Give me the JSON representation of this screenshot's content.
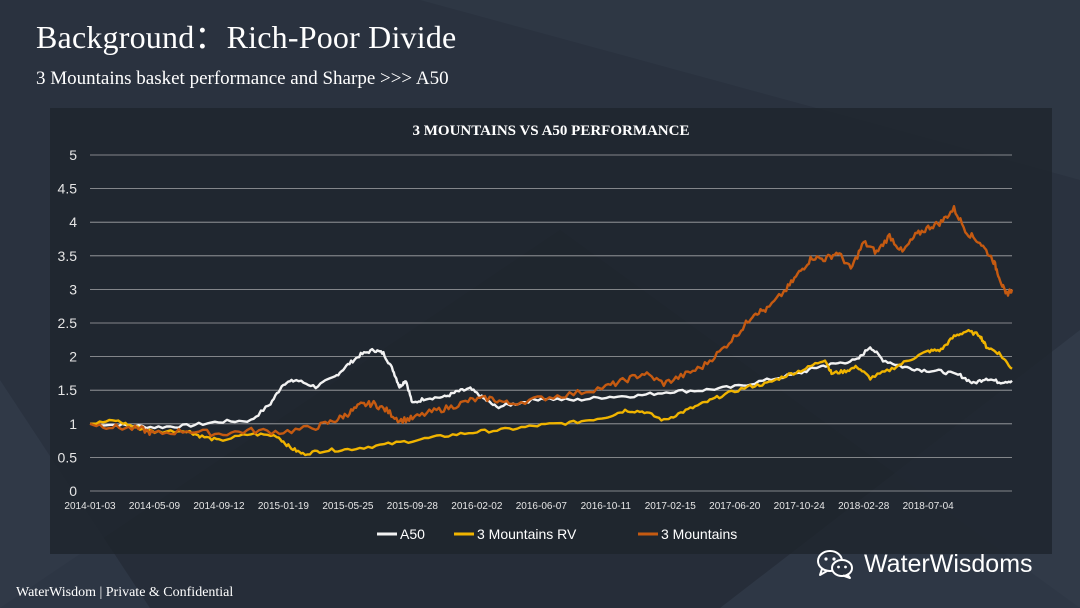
{
  "slide": {
    "title": "Background：Rich-Poor Divide",
    "subtitle": "3 Mountains basket performance and Sharpe >>> A50",
    "footer": "WaterWisdom | Private & Confidential",
    "brand": "WaterWisdoms"
  },
  "colors": {
    "background": "#2a323f",
    "panel": "#1e242c",
    "a50": "#f2f2f2",
    "rv": "#f0b400",
    "mountains": "#c55a11"
  },
  "chart_data": {
    "type": "line",
    "title": "3 MOUNTAINS VS A50 PERFORMANCE",
    "xlabel": "",
    "ylabel": "",
    "ylim": [
      0,
      5
    ],
    "yticks": [
      "0",
      "0.5",
      "1",
      "1.5",
      "2",
      "2.5",
      "3",
      "3.5",
      "4",
      "4.5",
      "5"
    ],
    "categories": [
      "2014-01-03",
      "2014-05-09",
      "2014-09-12",
      "2015-01-19",
      "2015-05-25",
      "2015-09-28",
      "2016-02-02",
      "2016-06-07",
      "2016-10-11",
      "2017-02-15",
      "2017-06-20",
      "2017-10-24",
      "2018-02-28",
      "2018-07-04"
    ],
    "x_end_index": 14.3,
    "legend_position": "bottom",
    "series": [
      {
        "name": "A50",
        "color": "#f2f2f2",
        "points": [
          [
            0,
            1.0
          ],
          [
            0.5,
            0.98
          ],
          [
            1,
            0.95
          ],
          [
            1.5,
            0.97
          ],
          [
            2,
            1.03
          ],
          [
            2.5,
            1.05
          ],
          [
            2.8,
            1.3
          ],
          [
            3,
            1.6
          ],
          [
            3.2,
            1.65
          ],
          [
            3.5,
            1.55
          ],
          [
            3.8,
            1.7
          ],
          [
            4.0,
            1.88
          ],
          [
            4.2,
            2.03
          ],
          [
            4.4,
            2.1
          ],
          [
            4.55,
            2.05
          ],
          [
            4.7,
            1.8
          ],
          [
            4.8,
            1.55
          ],
          [
            4.9,
            1.65
          ],
          [
            5.0,
            1.3
          ],
          [
            5.2,
            1.38
          ],
          [
            5.5,
            1.4
          ],
          [
            5.7,
            1.48
          ],
          [
            5.9,
            1.52
          ],
          [
            6.1,
            1.38
          ],
          [
            6.3,
            1.25
          ],
          [
            6.6,
            1.3
          ],
          [
            7.0,
            1.38
          ],
          [
            7.5,
            1.35
          ],
          [
            8.0,
            1.4
          ],
          [
            8.5,
            1.42
          ],
          [
            9.0,
            1.48
          ],
          [
            9.5,
            1.5
          ],
          [
            10.0,
            1.55
          ],
          [
            10.5,
            1.65
          ],
          [
            11.0,
            1.75
          ],
          [
            11.3,
            1.85
          ],
          [
            11.6,
            1.9
          ],
          [
            11.9,
            1.95
          ],
          [
            12.1,
            2.15
          ],
          [
            12.3,
            1.95
          ],
          [
            12.6,
            1.85
          ],
          [
            12.9,
            1.8
          ],
          [
            13.2,
            1.78
          ],
          [
            13.5,
            1.72
          ],
          [
            13.7,
            1.6
          ],
          [
            13.9,
            1.68
          ],
          [
            14.1,
            1.62
          ],
          [
            14.3,
            1.64
          ]
        ]
      },
      {
        "name": "3 Mountains RV",
        "color": "#f0b400",
        "points": [
          [
            0,
            1.0
          ],
          [
            0.4,
            1.05
          ],
          [
            0.7,
            0.95
          ],
          [
            1,
            0.88
          ],
          [
            1.5,
            0.9
          ],
          [
            1.7,
            0.82
          ],
          [
            2,
            0.75
          ],
          [
            2.5,
            0.85
          ],
          [
            2.9,
            0.82
          ],
          [
            3.1,
            0.65
          ],
          [
            3.3,
            0.55
          ],
          [
            3.6,
            0.6
          ],
          [
            4.0,
            0.62
          ],
          [
            4.5,
            0.68
          ],
          [
            5.0,
            0.75
          ],
          [
            5.5,
            0.82
          ],
          [
            6.0,
            0.88
          ],
          [
            6.5,
            0.92
          ],
          [
            7.0,
            0.98
          ],
          [
            7.5,
            1.02
          ],
          [
            8.0,
            1.1
          ],
          [
            8.3,
            1.2
          ],
          [
            8.6,
            1.18
          ],
          [
            8.9,
            1.05
          ],
          [
            9.2,
            1.18
          ],
          [
            9.5,
            1.3
          ],
          [
            9.8,
            1.42
          ],
          [
            10.2,
            1.55
          ],
          [
            10.5,
            1.6
          ],
          [
            10.8,
            1.72
          ],
          [
            11.1,
            1.82
          ],
          [
            11.4,
            1.96
          ],
          [
            11.5,
            1.75
          ],
          [
            11.7,
            1.78
          ],
          [
            11.9,
            1.85
          ],
          [
            12.1,
            1.68
          ],
          [
            12.4,
            1.8
          ],
          [
            12.7,
            1.95
          ],
          [
            13.0,
            2.08
          ],
          [
            13.2,
            2.1
          ],
          [
            13.4,
            2.3
          ],
          [
            13.6,
            2.38
          ],
          [
            13.8,
            2.32
          ],
          [
            13.9,
            2.15
          ],
          [
            14.1,
            2.05
          ],
          [
            14.3,
            1.82
          ]
        ]
      },
      {
        "name": "3 Mountains",
        "color": "#c55a11",
        "points": [
          [
            0,
            1.0
          ],
          [
            0.4,
            0.95
          ],
          [
            0.8,
            0.92
          ],
          [
            1,
            0.85
          ],
          [
            1.5,
            0.9
          ],
          [
            2,
            0.85
          ],
          [
            2.5,
            0.9
          ],
          [
            3,
            0.88
          ],
          [
            3.5,
            0.95
          ],
          [
            3.8,
            1.05
          ],
          [
            4.0,
            1.15
          ],
          [
            4.2,
            1.28
          ],
          [
            4.4,
            1.3
          ],
          [
            4.6,
            1.2
          ],
          [
            4.8,
            1.05
          ],
          [
            5.0,
            1.08
          ],
          [
            5.3,
            1.18
          ],
          [
            5.6,
            1.25
          ],
          [
            5.9,
            1.35
          ],
          [
            6.2,
            1.38
          ],
          [
            6.5,
            1.3
          ],
          [
            7.0,
            1.38
          ],
          [
            7.5,
            1.45
          ],
          [
            8.0,
            1.55
          ],
          [
            8.3,
            1.65
          ],
          [
            8.6,
            1.75
          ],
          [
            8.9,
            1.6
          ],
          [
            9.2,
            1.72
          ],
          [
            9.5,
            1.85
          ],
          [
            9.8,
            2.1
          ],
          [
            10.1,
            2.4
          ],
          [
            10.3,
            2.65
          ],
          [
            10.5,
            2.7
          ],
          [
            10.8,
            3.0
          ],
          [
            11.0,
            3.25
          ],
          [
            11.2,
            3.48
          ],
          [
            11.4,
            3.45
          ],
          [
            11.6,
            3.55
          ],
          [
            11.8,
            3.3
          ],
          [
            12.0,
            3.7
          ],
          [
            12.2,
            3.55
          ],
          [
            12.4,
            3.8
          ],
          [
            12.6,
            3.55
          ],
          [
            12.8,
            3.8
          ],
          [
            13.0,
            3.92
          ],
          [
            13.2,
            4.0
          ],
          [
            13.4,
            4.2
          ],
          [
            13.6,
            3.85
          ],
          [
            13.8,
            3.7
          ],
          [
            14.0,
            3.45
          ],
          [
            14.1,
            3.2
          ],
          [
            14.2,
            2.92
          ],
          [
            14.3,
            3.0
          ]
        ]
      }
    ]
  }
}
